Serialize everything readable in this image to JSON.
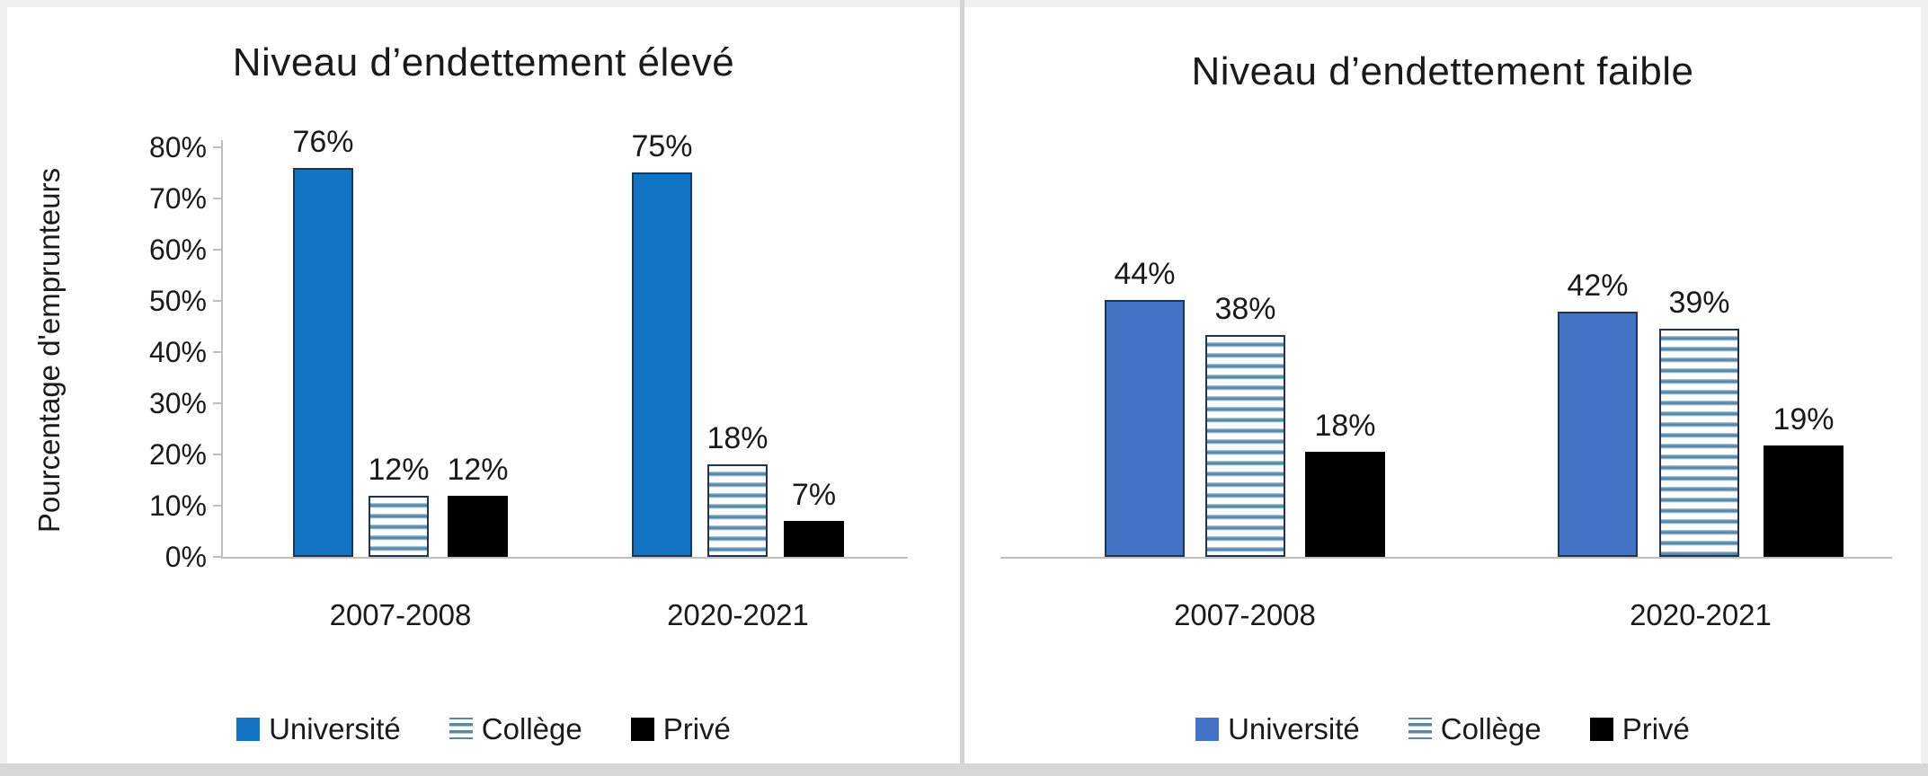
{
  "colors": {
    "universite_left": "#1274C5",
    "universite_right": "#4472C4",
    "stripe_dark": "#5988A8",
    "stripe_light": "#BBD7EA",
    "stripe_border": "#1F3550",
    "blue_border": "#17375D",
    "prive_black": "#000000",
    "axis_gray": "#BFBFBF",
    "text": "#1A1A1A",
    "canvas_edge": "#F0F0F0",
    "bottom_strip": "#D7D7D7",
    "divider": "#D4D4D4",
    "panel_bg": "#FFFFFF"
  },
  "chart_data": [
    {
      "type": "bar",
      "title": "Niveau d’endettement élevé",
      "ylabel": "Pourcentage d'emprunteurs",
      "categories": [
        "2007-2008",
        "2020-2021"
      ],
      "series": [
        {
          "name": "Université",
          "swatch": "blue-left",
          "values": [
            76,
            75
          ]
        },
        {
          "name": "Collège",
          "swatch": "stripes",
          "values": [
            12,
            18
          ]
        },
        {
          "name": "Privé",
          "swatch": "black",
          "values": [
            12,
            7
          ]
        }
      ],
      "value_suffix": "%",
      "y_ticks": [
        "0%",
        "10%",
        "20%",
        "30%",
        "40%",
        "50%",
        "60%",
        "70%",
        "80%"
      ],
      "ylim": [
        0,
        80
      ],
      "grid": false,
      "y_axis_visible": true,
      "legend_position": "bottom"
    },
    {
      "type": "bar",
      "title": "Niveau d’endettement faible",
      "ylabel": "",
      "categories": [
        "2007-2008",
        "2020-2021"
      ],
      "series": [
        {
          "name": "Université",
          "swatch": "blue-right",
          "values": [
            44,
            42
          ]
        },
        {
          "name": "Collège",
          "swatch": "stripes",
          "values": [
            38,
            39
          ]
        },
        {
          "name": "Privé",
          "swatch": "black",
          "values": [
            18,
            19
          ]
        }
      ],
      "value_suffix": "%",
      "y_ticks": [],
      "ylim": [
        0,
        50
      ],
      "grid": false,
      "y_axis_visible": false,
      "legend_position": "bottom"
    }
  ]
}
